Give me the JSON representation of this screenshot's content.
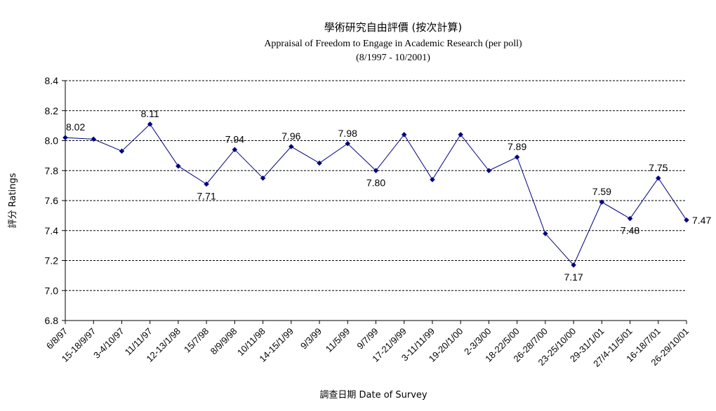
{
  "chart_data": {
    "type": "line",
    "title": "學術研究自由評價 (按次計算)",
    "subtitle": "Appraisal of Freedom to Engage in Academic Research (per poll)",
    "subtitle2": "(8/1997 - 10/2001)",
    "xlabel": "調查日期 Date of Survey",
    "ylabel": "評分 Ratings",
    "ylim": [
      6.8,
      8.4
    ],
    "yticks": [
      "6.8",
      "7.0",
      "7.2",
      "7.4",
      "7.6",
      "7.8",
      "8.0",
      "8.2",
      "8.4"
    ],
    "grid": true,
    "legend": "none",
    "color": "#000080",
    "categories": [
      "6/8/97",
      "15-18/9/97",
      "3-4/10/97",
      "11/11/97",
      "12-13/1/98",
      "15/7/98",
      "8/9/9/98",
      "10/11/98",
      "14-15/1/99",
      "9/3/99",
      "11/5/99",
      "9/7/99",
      "17-21/9/99",
      "3-11/11/99",
      "19-20/1/00",
      "2-3/3/00",
      "18-22/5/00",
      "26-28/7/00",
      "23-25/10/00",
      "29-31/1/01",
      "27/4-11/5/01",
      "16-18/7/01",
      "26-29/10/01"
    ],
    "series": [
      {
        "values": [
          8.02,
          8.01,
          7.93,
          8.11,
          7.83,
          7.71,
          7.94,
          7.75,
          7.96,
          7.85,
          7.98,
          7.8,
          8.04,
          7.74,
          8.04,
          7.8,
          7.89,
          7.38,
          7.17,
          7.59,
          7.48,
          7.75,
          7.47
        ]
      }
    ],
    "data_labels": [
      {
        "index": 0,
        "text": "8.02"
      },
      {
        "index": 3,
        "text": "8.11"
      },
      {
        "index": 5,
        "text": "7.71"
      },
      {
        "index": 6,
        "text": "7.94"
      },
      {
        "index": 8,
        "text": "7.96"
      },
      {
        "index": 10,
        "text": "7.98"
      },
      {
        "index": 11,
        "text": "7.80"
      },
      {
        "index": 16,
        "text": "7.89"
      },
      {
        "index": 18,
        "text": "7.17"
      },
      {
        "index": 19,
        "text": "7.59"
      },
      {
        "index": 20,
        "text": "7.48"
      },
      {
        "index": 21,
        "text": "7.75"
      },
      {
        "index": 22,
        "text": "7.47"
      }
    ]
  }
}
